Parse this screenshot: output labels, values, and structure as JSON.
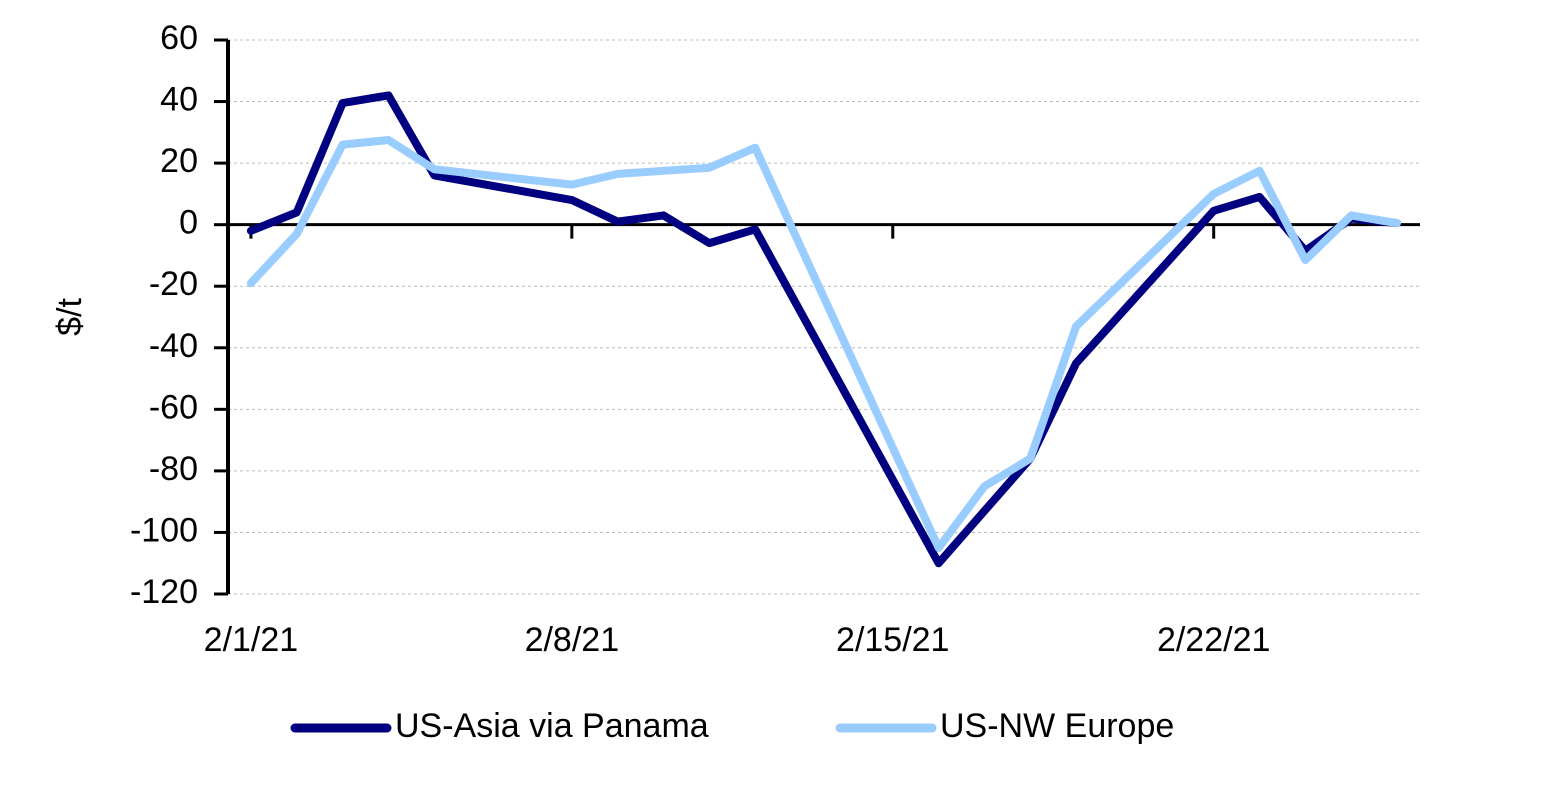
{
  "chart_data": {
    "type": "line",
    "y_label": "$/t",
    "x": [
      "2021-02-01",
      "2021-02-02",
      "2021-02-03",
      "2021-02-04",
      "2021-02-05",
      "2021-02-08",
      "2021-02-09",
      "2021-02-10",
      "2021-02-11",
      "2021-02-12",
      "2021-02-16",
      "2021-02-17",
      "2021-02-18",
      "2021-02-19",
      "2021-02-22",
      "2021-02-23",
      "2021-02-24",
      "2021-02-25",
      "2021-02-26"
    ],
    "series": [
      {
        "name": "US-Asia via Panama",
        "color": "#000080",
        "values": [
          -2,
          4,
          39.5,
          42,
          16,
          8,
          1,
          3,
          -6,
          -1.5,
          -110,
          -93,
          -76,
          -45,
          4.5,
          9,
          -8.5,
          2,
          0.5
        ]
      },
      {
        "name": "US-NW Europe",
        "color": "#99ccff",
        "values": [
          -19,
          -3,
          26,
          27.5,
          18,
          13,
          16.5,
          17.5,
          18.5,
          25,
          -105,
          -85,
          -76,
          -33,
          10,
          17.5,
          -11.5,
          3,
          0.5
        ]
      }
    ],
    "xlim": [
      "2021-01-31T12:00Z",
      "2021-02-26T12:00Z"
    ],
    "xticks": [
      {
        "value": "2021-02-01",
        "label": "2/1/21"
      },
      {
        "value": "2021-02-08",
        "label": "2/8/21"
      },
      {
        "value": "2021-02-15",
        "label": "2/15/21"
      },
      {
        "value": "2021-02-22",
        "label": "2/22/21"
      }
    ],
    "ylim": [
      -120,
      60
    ],
    "yticks": [
      -120,
      -100,
      -80,
      -60,
      -40,
      -20,
      0,
      20,
      40,
      60
    ],
    "grid": true,
    "legend": "bottom"
  }
}
